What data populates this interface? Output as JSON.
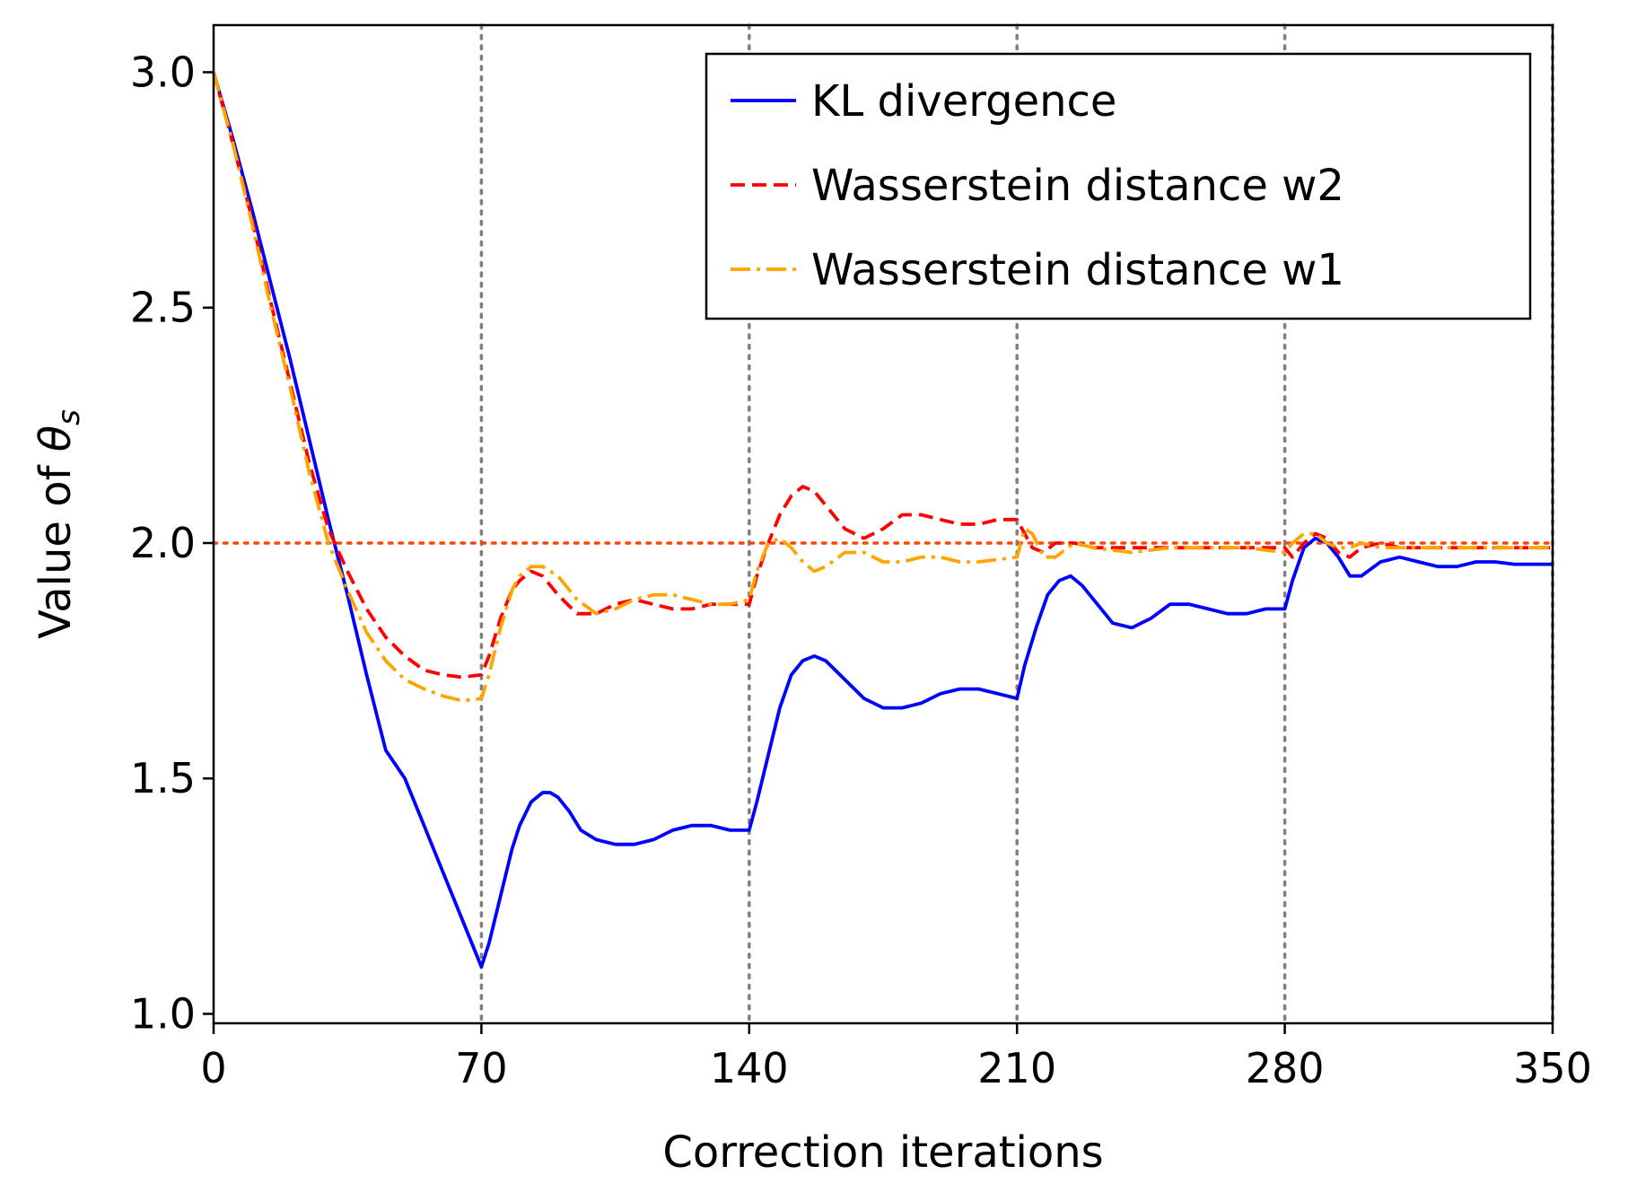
{
  "chart_data": {
    "type": "line",
    "title": "",
    "xlabel": "Correction iterations",
    "ylabel_prefix": "Value of ",
    "ylabel_symbol": "θ",
    "ylabel_subscript": "s",
    "xlim": [
      0,
      350
    ],
    "ylim": [
      0.98,
      3.1
    ],
    "xticks": [
      0,
      70,
      140,
      210,
      280,
      350
    ],
    "xtick_labels": [
      "0",
      "70",
      "140",
      "210",
      "280",
      "350"
    ],
    "yticks": [
      1.0,
      1.5,
      2.0,
      2.5,
      3.0
    ],
    "ytick_labels": [
      "1.0",
      "1.5",
      "2.0",
      "2.5",
      "3.0"
    ],
    "vertical_reference_lines": [
      70,
      140,
      210,
      280,
      350
    ],
    "horizontal_reference_line": 2.0,
    "legend_position": "top-right",
    "colors": {
      "kl": "#0000ff",
      "w2": "#ff0000",
      "w1": "#ffa500",
      "reference_h": "#ff4500",
      "reference_v": "#808080"
    },
    "series": [
      {
        "name": "KL divergence",
        "key": "kl",
        "style": "solid",
        "x": [
          0,
          5,
          10,
          15,
          20,
          25,
          30,
          35,
          40,
          45,
          50,
          55,
          60,
          65,
          70,
          72,
          75,
          78,
          80,
          83,
          86,
          88,
          90,
          93,
          96,
          100,
          105,
          110,
          115,
          120,
          125,
          130,
          135,
          140,
          142,
          145,
          148,
          151,
          154,
          157,
          160,
          165,
          170,
          175,
          180,
          185,
          190,
          195,
          200,
          205,
          210,
          212,
          215,
          218,
          221,
          224,
          227,
          230,
          235,
          240,
          245,
          250,
          255,
          260,
          265,
          270,
          275,
          280,
          282,
          285,
          288,
          291,
          294,
          297,
          300,
          305,
          310,
          315,
          320,
          325,
          330,
          335,
          340,
          345,
          350
        ],
        "values": [
          3.0,
          2.86,
          2.71,
          2.55,
          2.39,
          2.22,
          2.05,
          1.89,
          1.72,
          1.56,
          1.5,
          1.4,
          1.3,
          1.2,
          1.1,
          1.15,
          1.25,
          1.35,
          1.4,
          1.45,
          1.47,
          1.47,
          1.46,
          1.43,
          1.39,
          1.37,
          1.36,
          1.36,
          1.37,
          1.39,
          1.4,
          1.4,
          1.39,
          1.39,
          1.45,
          1.55,
          1.65,
          1.72,
          1.75,
          1.76,
          1.75,
          1.71,
          1.67,
          1.65,
          1.65,
          1.66,
          1.68,
          1.69,
          1.69,
          1.68,
          1.67,
          1.74,
          1.82,
          1.89,
          1.92,
          1.93,
          1.91,
          1.88,
          1.83,
          1.82,
          1.84,
          1.87,
          1.87,
          1.86,
          1.85,
          1.85,
          1.86,
          1.86,
          1.92,
          1.99,
          2.01,
          2.0,
          1.97,
          1.93,
          1.93,
          1.96,
          1.97,
          1.96,
          1.95,
          1.95,
          1.96,
          1.96,
          1.955,
          1.955,
          1.955
        ]
      },
      {
        "name": "Wasserstein distance w2",
        "key": "w2",
        "style": "dashed",
        "x": [
          0,
          5,
          10,
          15,
          20,
          25,
          30,
          35,
          40,
          45,
          50,
          55,
          60,
          65,
          70,
          72,
          75,
          78,
          80,
          83,
          86,
          90,
          95,
          100,
          105,
          110,
          115,
          120,
          125,
          130,
          135,
          140,
          142,
          145,
          148,
          151,
          154,
          157,
          160,
          165,
          170,
          175,
          180,
          185,
          190,
          195,
          200,
          205,
          210,
          212,
          214,
          217,
          220,
          225,
          230,
          240,
          250,
          260,
          270,
          280,
          282,
          285,
          288,
          291,
          294,
          297,
          300,
          305,
          310,
          320,
          330,
          340,
          350
        ],
        "values": [
          3.0,
          2.85,
          2.69,
          2.51,
          2.34,
          2.17,
          2.03,
          1.94,
          1.86,
          1.8,
          1.76,
          1.73,
          1.72,
          1.715,
          1.72,
          1.76,
          1.84,
          1.9,
          1.92,
          1.94,
          1.93,
          1.89,
          1.85,
          1.85,
          1.87,
          1.88,
          1.87,
          1.86,
          1.86,
          1.87,
          1.87,
          1.87,
          1.93,
          2.0,
          2.06,
          2.1,
          2.12,
          2.11,
          2.08,
          2.03,
          2.01,
          2.03,
          2.06,
          2.06,
          2.05,
          2.04,
          2.04,
          2.05,
          2.05,
          2.02,
          1.99,
          1.98,
          2.0,
          2.0,
          1.99,
          1.99,
          1.99,
          1.99,
          1.99,
          1.99,
          1.97,
          2.0,
          2.02,
          2.01,
          1.98,
          1.97,
          1.99,
          2.0,
          1.99,
          1.99,
          1.99,
          1.99,
          1.99
        ]
      },
      {
        "name": "Wasserstein distance w1",
        "key": "w1",
        "style": "dashdot",
        "x": [
          0,
          5,
          10,
          15,
          20,
          25,
          30,
          35,
          40,
          45,
          50,
          55,
          60,
          65,
          70,
          72,
          75,
          78,
          80,
          83,
          86,
          90,
          95,
          100,
          105,
          110,
          115,
          120,
          125,
          130,
          135,
          140,
          142,
          145,
          148,
          151,
          154,
          157,
          160,
          165,
          170,
          175,
          180,
          185,
          190,
          195,
          200,
          205,
          210,
          212,
          214,
          217,
          220,
          225,
          230,
          240,
          250,
          260,
          270,
          280,
          282,
          285,
          288,
          291,
          294,
          297,
          300,
          305,
          310,
          320,
          330,
          340,
          350
        ],
        "values": [
          3.0,
          2.85,
          2.68,
          2.5,
          2.33,
          2.15,
          2.0,
          1.9,
          1.81,
          1.75,
          1.71,
          1.69,
          1.675,
          1.665,
          1.67,
          1.72,
          1.82,
          1.9,
          1.93,
          1.95,
          1.95,
          1.93,
          1.88,
          1.85,
          1.86,
          1.88,
          1.89,
          1.89,
          1.88,
          1.87,
          1.87,
          1.88,
          1.94,
          2.0,
          2.01,
          1.99,
          1.96,
          1.94,
          1.95,
          1.98,
          1.98,
          1.96,
          1.96,
          1.97,
          1.97,
          1.96,
          1.96,
          1.965,
          1.97,
          2.03,
          2.02,
          1.97,
          1.97,
          2.0,
          1.99,
          1.98,
          1.99,
          1.99,
          1.99,
          1.98,
          2.0,
          2.02,
          2.02,
          2.0,
          1.99,
          1.99,
          2.0,
          1.99,
          1.99,
          1.99,
          1.99,
          1.99,
          1.99
        ]
      }
    ]
  }
}
